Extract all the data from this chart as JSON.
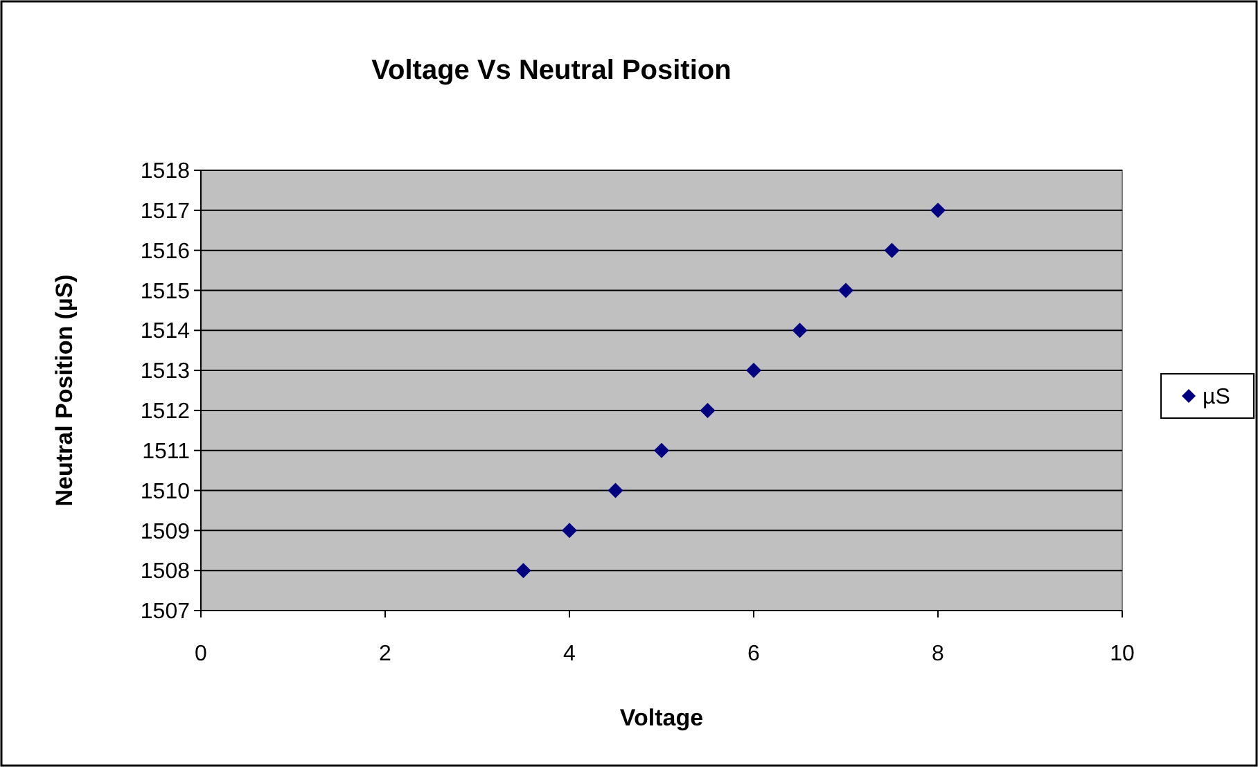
{
  "chart_data": {
    "type": "scatter",
    "title": "Voltage Vs Neutral Position",
    "xlabel": "Voltage",
    "ylabel": "Neutral Position (µS)",
    "series": [
      {
        "name": "µS",
        "color": "#000080",
        "x": [
          3.5,
          4,
          4.5,
          5,
          5.5,
          6,
          6.5,
          7,
          7.5,
          8
        ],
        "values": [
          1508,
          1509,
          1510,
          1511,
          1512,
          1513,
          1514,
          1515,
          1516,
          1517
        ]
      }
    ],
    "xlim": [
      0,
      10
    ],
    "xticks": [
      0,
      2,
      4,
      6,
      8,
      10
    ],
    "ylim": [
      1507,
      1518
    ],
    "yticks": [
      1507,
      1508,
      1509,
      1510,
      1511,
      1512,
      1513,
      1514,
      1515,
      1516,
      1517,
      1518
    ],
    "grid": "y",
    "legend": "right",
    "marker": "diamond"
  }
}
